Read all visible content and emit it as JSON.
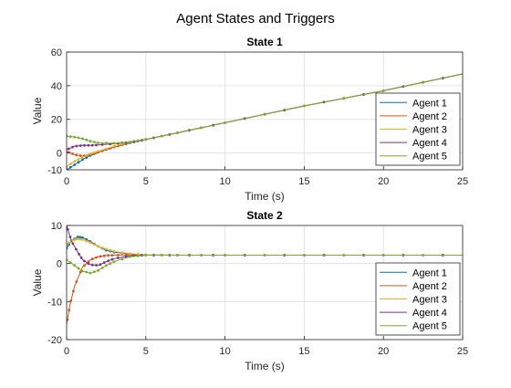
{
  "figure_title": "Agent States and Triggers",
  "chart_data": [
    {
      "type": "line",
      "title": "State 1",
      "xlabel": "Time (s)",
      "ylabel": "Value",
      "xlim": [
        0,
        25
      ],
      "ylim": [
        -10,
        60
      ],
      "xticks": [
        "0",
        "5",
        "10",
        "15",
        "20",
        "25"
      ],
      "yticks": [
        "-10",
        "0",
        "20",
        "40",
        "60"
      ],
      "ytick_values": [
        -10,
        0,
        20,
        40,
        60
      ],
      "grid": true,
      "legend": "bottom-right",
      "series": [
        {
          "name": "Agent 1",
          "color": "#0072BD",
          "x": [
            0,
            0.5,
            1,
            1.5,
            2,
            3,
            4,
            5,
            7,
            10,
            15,
            20,
            25
          ],
          "y": [
            -10,
            -7,
            -4,
            -1.5,
            0.5,
            3.5,
            6,
            8,
            12,
            18,
            28,
            37,
            47
          ]
        },
        {
          "name": "Agent 2",
          "color": "#D95319",
          "x": [
            0,
            0.5,
            1,
            1.5,
            2,
            3,
            4,
            5,
            7,
            10,
            15,
            20,
            25
          ],
          "y": [
            1,
            -1,
            -1.8,
            -1,
            0.5,
            3.5,
            6,
            8,
            12,
            18,
            28,
            37,
            47
          ]
        },
        {
          "name": "Agent 3",
          "color": "#EDB120",
          "x": [
            0,
            0.5,
            1,
            1.5,
            2,
            3,
            4,
            5,
            7,
            10,
            15,
            20,
            25
          ],
          "y": [
            -8,
            -5,
            -2.5,
            -0.5,
            1,
            4,
            6.5,
            8.2,
            12,
            18,
            28,
            37,
            47
          ]
        },
        {
          "name": "Agent 4",
          "color": "#7E2F8E",
          "x": [
            0,
            0.5,
            1,
            1.5,
            2,
            3,
            4,
            5,
            7,
            10,
            15,
            20,
            25
          ],
          "y": [
            2,
            4,
            4.5,
            4.5,
            4.8,
            5.5,
            6.5,
            8,
            12,
            18,
            28,
            37,
            47
          ]
        },
        {
          "name": "Agent 5",
          "color": "#77AC30",
          "x": [
            0,
            0.5,
            1,
            1.5,
            2,
            3,
            4,
            5,
            7,
            10,
            15,
            20,
            25
          ],
          "y": [
            10,
            9.5,
            8.5,
            7,
            6,
            5.8,
            6.5,
            8,
            12,
            18,
            28,
            37,
            47
          ]
        }
      ]
    },
    {
      "type": "line",
      "title": "State 2",
      "xlabel": "Time (s)",
      "ylabel": "Value",
      "xlim": [
        0,
        25
      ],
      "ylim": [
        -20,
        10
      ],
      "xticks": [
        "0",
        "5",
        "10",
        "15",
        "20",
        "25"
      ],
      "yticks": [
        "-20",
        "-10",
        "0",
        "10"
      ],
      "ytick_values": [
        -20,
        -10,
        0,
        10
      ],
      "grid": true,
      "legend": "bottom-right",
      "series": [
        {
          "name": "Agent 1",
          "color": "#0072BD",
          "x": [
            0,
            0.3,
            0.7,
            1,
            1.5,
            2,
            2.5,
            3,
            4,
            5,
            7,
            10,
            15,
            20,
            25
          ],
          "y": [
            4,
            6,
            7,
            6.8,
            5.8,
            4.5,
            3.5,
            3,
            2.5,
            2.3,
            2.2,
            2.2,
            2.2,
            2.2,
            2.2
          ]
        },
        {
          "name": "Agent 2",
          "color": "#D95319",
          "x": [
            0,
            0.2,
            0.5,
            1,
            1.5,
            2,
            2.5,
            3,
            4,
            5,
            7,
            10,
            15,
            20,
            25
          ],
          "y": [
            -16,
            -11,
            -6,
            -1,
            1,
            1.8,
            2.1,
            2.2,
            2.3,
            2.2,
            2.2,
            2.2,
            2.2,
            2.2,
            2.2
          ]
        },
        {
          "name": "Agent 3",
          "color": "#EDB120",
          "x": [
            0,
            0.3,
            0.7,
            1,
            1.5,
            2,
            2.5,
            3,
            4,
            5,
            7,
            10,
            15,
            20,
            25
          ],
          "y": [
            5,
            6,
            6.5,
            6.3,
            5.5,
            4.5,
            3.8,
            3.2,
            2.6,
            2.3,
            2.2,
            2.2,
            2.2,
            2.2,
            2.2
          ]
        },
        {
          "name": "Agent 4",
          "color": "#7E2F8E",
          "x": [
            0,
            0.3,
            0.7,
            1,
            1.5,
            2,
            2.5,
            3,
            4,
            5,
            7,
            10,
            15,
            20,
            25
          ],
          "y": [
            10,
            6,
            3,
            1,
            -0.3,
            -0.5,
            0.5,
            1.3,
            2,
            2.2,
            2.2,
            2.2,
            2.2,
            2.2,
            2.2
          ]
        },
        {
          "name": "Agent 5",
          "color": "#77AC30",
          "x": [
            0,
            0.5,
            1,
            1.5,
            2,
            2.5,
            3,
            4,
            5,
            7,
            10,
            15,
            20,
            25
          ],
          "y": [
            1,
            -0.5,
            -2,
            -2.5,
            -1.8,
            -0.5,
            0.5,
            1.8,
            2.2,
            2.2,
            2.2,
            2.2,
            2.2,
            2.2
          ]
        }
      ]
    }
  ]
}
